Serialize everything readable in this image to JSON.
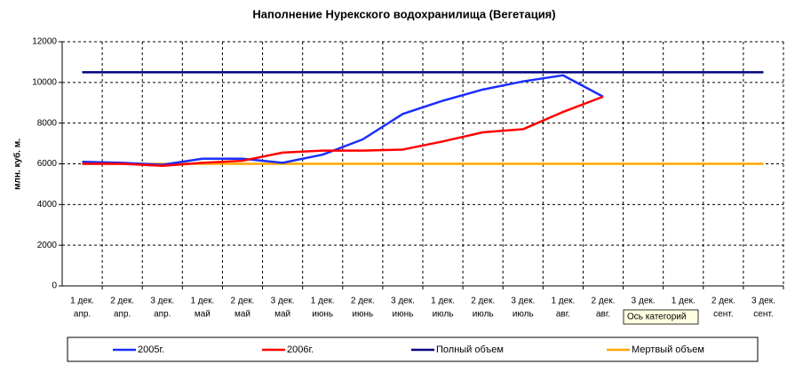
{
  "chart_data": {
    "type": "line",
    "title": "Наполнение Нурекского водохранилища (Вегетация)",
    "y_label": "млн. куб. м.",
    "categories": [
      [
        "1 дек.",
        "апр."
      ],
      [
        "2 дек.",
        "апр."
      ],
      [
        "3 дек.",
        "апр."
      ],
      [
        "1 дек.",
        "май"
      ],
      [
        "2 дек.",
        "май"
      ],
      [
        "3 дек.",
        "май"
      ],
      [
        "1 дек.",
        "июнь"
      ],
      [
        "2 дек.",
        "июнь"
      ],
      [
        "3 дек.",
        "июнь"
      ],
      [
        "1 дек.",
        "июль"
      ],
      [
        "2 дек.",
        "июль"
      ],
      [
        "3 дек.",
        "июль"
      ],
      [
        "1 дек.",
        "авг."
      ],
      [
        "2 дек.",
        "авг."
      ],
      [
        "3 дек."
      ],
      [
        "1 дек.",
        "сент."
      ],
      [
        "2 дек.",
        "сент."
      ],
      [
        "3 дек.",
        "сент."
      ]
    ],
    "series": [
      {
        "name": "2005г.",
        "color": "#1a2eff",
        "values": [
          6100,
          6050,
          5950,
          6250,
          6250,
          6050,
          6450,
          7200,
          8450,
          9100,
          9650,
          10050,
          10350,
          9300,
          null,
          null,
          null,
          null
        ]
      },
      {
        "name": "2006г.",
        "color": "#ff0000",
        "values": [
          6000,
          6000,
          5900,
          6050,
          6150,
          6550,
          6650,
          6650,
          6700,
          7100,
          7550,
          7700,
          8550,
          9300,
          null,
          null,
          null,
          null
        ]
      },
      {
        "name": "Полный объем",
        "color": "#000080",
        "values": [
          10500,
          10500,
          10500,
          10500,
          10500,
          10500,
          10500,
          10500,
          10500,
          10500,
          10500,
          10500,
          10500,
          10500,
          10500,
          10500,
          10500,
          10500
        ]
      },
      {
        "name": "Мертвый объем",
        "color": "#ffa500",
        "values": [
          6000,
          6000,
          6000,
          6000,
          6000,
          6000,
          6000,
          6000,
          6000,
          6000,
          6000,
          6000,
          6000,
          6000,
          6000,
          6000,
          6000,
          6000
        ]
      }
    ],
    "ylim": [
      0,
      12000
    ],
    "yticks": [
      0,
      2000,
      4000,
      6000,
      8000,
      10000,
      12000
    ],
    "grid": true,
    "tooltip": "Ось категорий"
  }
}
